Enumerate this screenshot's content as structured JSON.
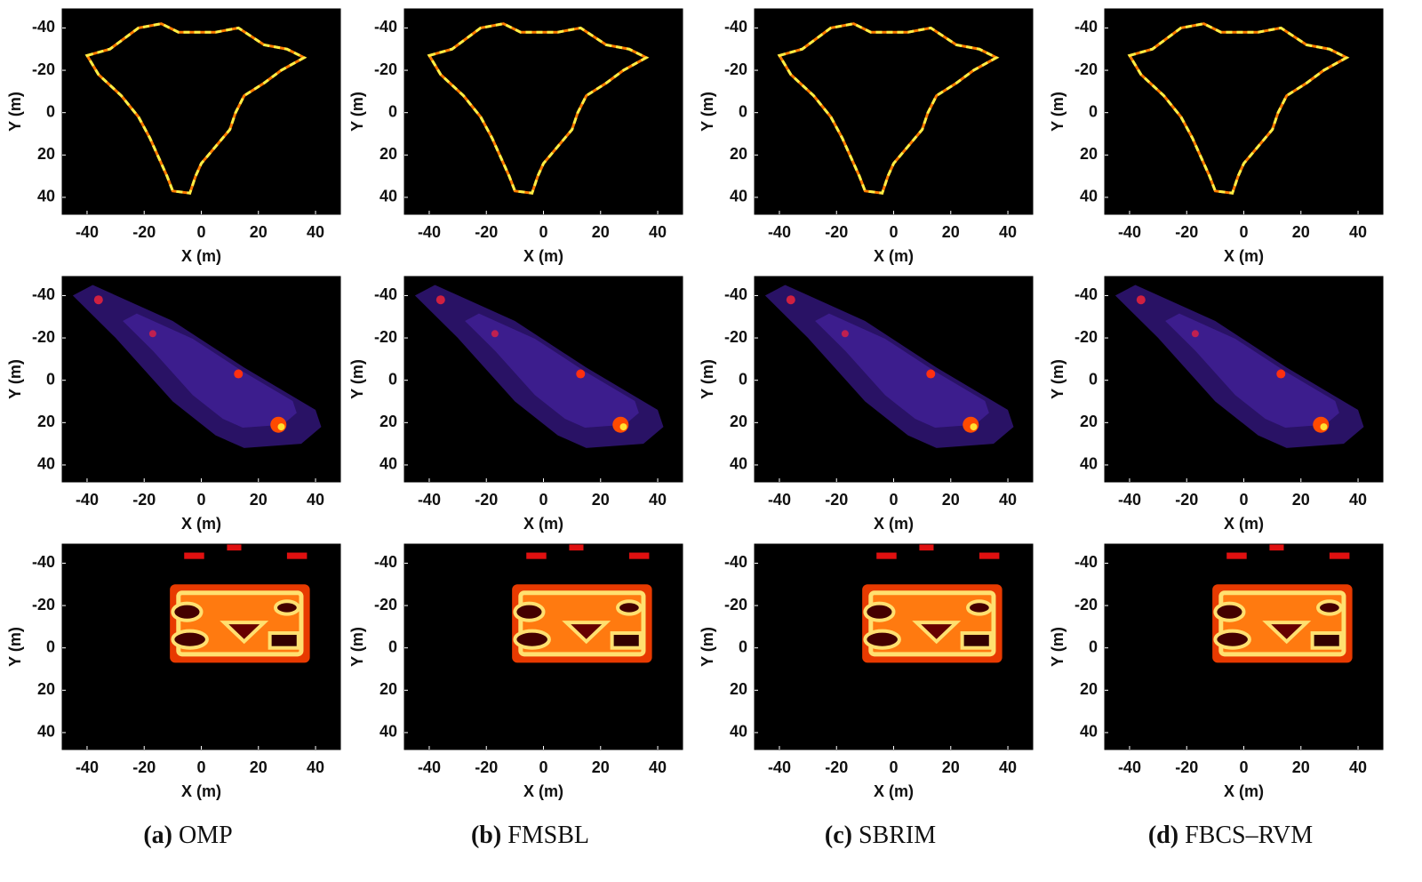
{
  "chart_data": [
    {
      "type": "heatmap",
      "xlabel": "X (m)",
      "ylabel": "Y (m)",
      "xlim": [
        -48.7,
        48.7
      ],
      "ylim": [
        -49,
        48
      ],
      "y_reversed": true,
      "xticks": [
        -40,
        -20,
        0,
        20,
        40
      ],
      "yticks": [
        -40,
        -20,
        0,
        20,
        40
      ],
      "colormap": "hot"
    },
    {
      "type": "heatmap",
      "xlabel": "X (m)",
      "ylabel": "Y (m)",
      "xlim": [
        -48.7,
        48.7
      ],
      "ylim": [
        -49,
        48
      ],
      "y_reversed": true,
      "xticks": [
        -40,
        -20,
        0,
        20,
        40
      ],
      "yticks": [
        -40,
        -20,
        0,
        20,
        40
      ],
      "colormap": "hot"
    },
    {
      "type": "heatmap",
      "xlabel": "X (m)",
      "ylabel": "Y (m)",
      "xlim": [
        -48.7,
        48.7
      ],
      "ylim": [
        -49,
        48
      ],
      "y_reversed": true,
      "xticks": [
        -40,
        -20,
        0,
        20,
        40
      ],
      "yticks": [
        -40,
        -20,
        0,
        20,
        40
      ],
      "colormap": "hot"
    },
    {
      "type": "heatmap",
      "xlabel": "X (m)",
      "ylabel": "Y (m)",
      "xlim": [
        -48.7,
        48.7
      ],
      "ylim": [
        -49,
        48
      ],
      "y_reversed": true,
      "xticks": [
        -40,
        -20,
        0,
        20,
        40
      ],
      "yticks": [
        -40,
        -20,
        0,
        20,
        40
      ],
      "colormap": "hot"
    },
    {
      "type": "heatmap",
      "xlabel": "X (m)",
      "ylabel": "Y (m)",
      "xlim": [
        -48.7,
        48.7
      ],
      "ylim": [
        -49,
        48
      ],
      "y_reversed": true,
      "xticks": [
        -40,
        -20,
        0,
        20,
        40
      ],
      "yticks": [
        -40,
        -20,
        0,
        20,
        40
      ],
      "colormap": "hot"
    },
    {
      "type": "heatmap",
      "xlabel": "X (m)",
      "ylabel": "Y (m)",
      "xlim": [
        -48.7,
        48.7
      ],
      "ylim": [
        -49,
        48
      ],
      "y_reversed": true,
      "xticks": [
        -40,
        -20,
        0,
        20,
        40
      ],
      "yticks": [
        -40,
        -20,
        0,
        20,
        40
      ],
      "colormap": "hot"
    },
    {
      "type": "heatmap",
      "xlabel": "X (m)",
      "ylabel": "Y (m)",
      "xlim": [
        -48.7,
        48.7
      ],
      "ylim": [
        -49,
        48
      ],
      "y_reversed": true,
      "xticks": [
        -40,
        -20,
        0,
        20,
        40
      ],
      "yticks": [
        -40,
        -20,
        0,
        20,
        40
      ],
      "colormap": "hot"
    },
    {
      "type": "heatmap",
      "xlabel": "X (m)",
      "ylabel": "Y (m)",
      "xlim": [
        -48.7,
        48.7
      ],
      "ylim": [
        -49,
        48
      ],
      "y_reversed": true,
      "xticks": [
        -40,
        -20,
        0,
        20,
        40
      ],
      "yticks": [
        -40,
        -20,
        0,
        20,
        40
      ],
      "colormap": "hot"
    },
    {
      "type": "heatmap",
      "xlabel": "X (m)",
      "ylabel": "Y (m)",
      "xlim": [
        -48.7,
        48.7
      ],
      "ylim": [
        -49,
        48
      ],
      "y_reversed": true,
      "xticks": [
        -40,
        -20,
        0,
        20,
        40
      ],
      "yticks": [
        -40,
        -20,
        0,
        20,
        40
      ],
      "colormap": "hot"
    },
    {
      "type": "heatmap",
      "xlabel": "X (m)",
      "ylabel": "Y (m)",
      "xlim": [
        -48.7,
        48.7
      ],
      "ylim": [
        -49,
        48
      ],
      "y_reversed": true,
      "xticks": [
        -40,
        -20,
        0,
        20,
        40
      ],
      "yticks": [
        -40,
        -20,
        0,
        20,
        40
      ],
      "colormap": "hot"
    },
    {
      "type": "heatmap",
      "xlabel": "X (m)",
      "ylabel": "Y (m)",
      "xlim": [
        -48.7,
        48.7
      ],
      "ylim": [
        -49,
        48
      ],
      "y_reversed": true,
      "xticks": [
        -40,
        -20,
        0,
        20,
        40
      ],
      "yticks": [
        -40,
        -20,
        0,
        20,
        40
      ],
      "colormap": "hot"
    },
    {
      "type": "heatmap",
      "xlabel": "X (m)",
      "ylabel": "Y (m)",
      "xlim": [
        -48.7,
        48.7
      ],
      "ylim": [
        -49,
        48
      ],
      "y_reversed": true,
      "xticks": [
        -40,
        -20,
        0,
        20,
        40
      ],
      "yticks": [
        -40,
        -20,
        0,
        20,
        40
      ],
      "colormap": "hot"
    }
  ],
  "captions": [
    {
      "label": "(a)",
      "name": "OMP"
    },
    {
      "label": "(b)",
      "name": "FMSBL"
    },
    {
      "label": "(c)",
      "name": "SBRIM"
    },
    {
      "label": "(d)",
      "name": "FBCS–RVM"
    }
  ]
}
